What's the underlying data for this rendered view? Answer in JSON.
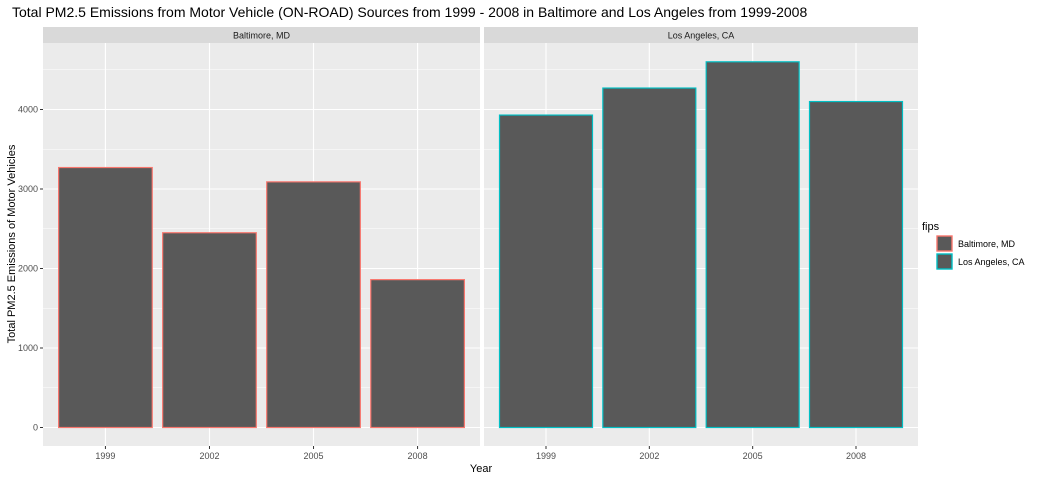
{
  "chart_data": {
    "type": "bar",
    "title": "Total PM2.5 Emissions from Motor Vehicle (ON-ROAD) Sources from 1999 - 2008 in Baltimore and Los Angeles from 1999-2008",
    "xlabel": "Year",
    "ylabel": "Total PM2.5 Emissions of Motor Vehicles",
    "categories": [
      "1999",
      "2002",
      "2005",
      "2008"
    ],
    "ylim": [
      0,
      4800
    ],
    "yticks": [
      0,
      1000,
      2000,
      3000,
      4000
    ],
    "grid": true,
    "legend": {
      "title": "fips",
      "position": "right",
      "entries": [
        "Baltimore, MD",
        "Los Angeles, CA"
      ]
    },
    "panels": [
      {
        "name": "Baltimore, MD",
        "outline_color": "#F8766D",
        "values": [
          3270,
          2450,
          3090,
          1860
        ]
      },
      {
        "name": "Los Angeles, CA",
        "outline_color": "#00BFC4",
        "values": [
          3930,
          4270,
          4600,
          4100
        ]
      }
    ],
    "fill_color": "#595959",
    "panel_background": "#EBEBEB",
    "strip_background": "#D9D9D9"
  }
}
